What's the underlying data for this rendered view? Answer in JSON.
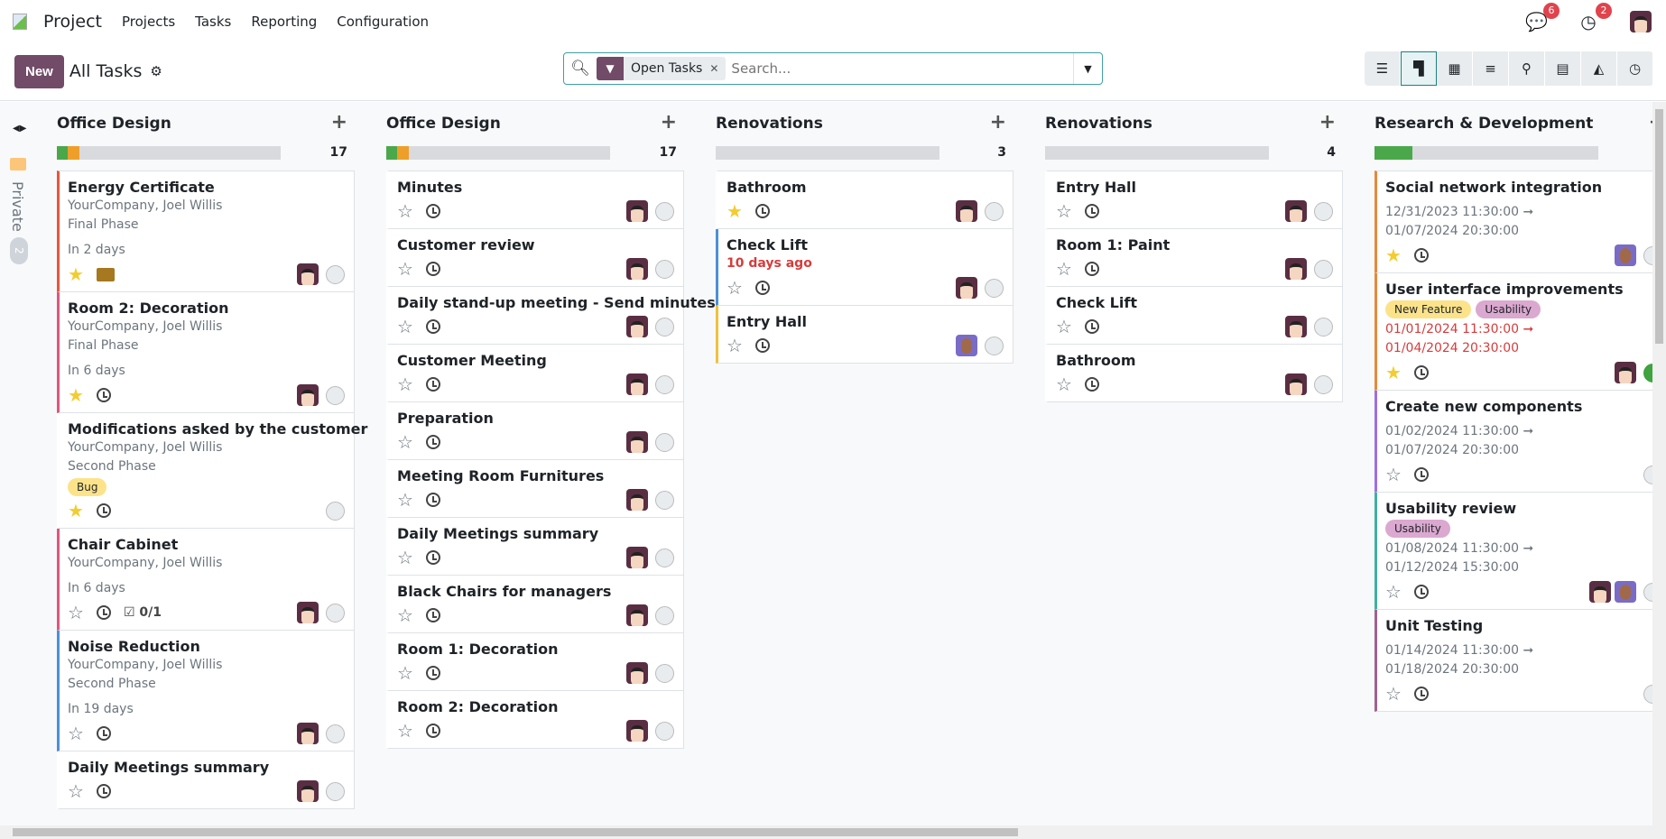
{
  "nav": {
    "app": "Project",
    "items": [
      "Projects",
      "Tasks",
      "Reporting",
      "Configuration"
    ],
    "messages_count": "6",
    "activities_count": "2"
  },
  "cp": {
    "new_label": "New",
    "title": "All Tasks",
    "facet": "Open Tasks",
    "search_placeholder": "Search...",
    "views": [
      "list-icon",
      "kanban-icon",
      "calendar-icon",
      "gantt-icon",
      "map-icon",
      "pivot-icon",
      "graph-icon",
      "activity-icon"
    ],
    "active_view": "kanban-icon"
  },
  "folded": {
    "label": "Private",
    "count": "2"
  },
  "colors": {
    "accent": "#714b67",
    "red": "#e8553f",
    "pink": "#e0557f",
    "blue": "#4a90d9",
    "yellow": "#f0c040",
    "orange": "#e6893a",
    "purple": "#9b6ee8",
    "teal": "#3fb0a0",
    "mauve": "#a0618f",
    "green": "#4aa84a",
    "progress_orange": "#ed9f2a"
  },
  "columns": [
    {
      "title": "Office Design",
      "count": "17",
      "progress": {
        "green": 5,
        "orange": 5
      },
      "cards": [
        {
          "title": "Energy Certificate",
          "sub": [
            "YourCompany, Joel Willis",
            "Final Phase"
          ],
          "deadline": "In 2 days",
          "starred": true,
          "activity": "envelope",
          "avatars": [
            "a"
          ],
          "color": "red"
        },
        {
          "title": "Room 2: Decoration",
          "sub": [
            "YourCompany, Joel Willis",
            "Final Phase"
          ],
          "deadline": "In 6 days",
          "starred": true,
          "activity": "clock",
          "avatars": [
            "a"
          ],
          "color": "pink"
        },
        {
          "title": "Modifications asked by the customer",
          "sub": [
            "YourCompany, Joel Willis",
            "Second Phase"
          ],
          "tags": [
            {
              "label": "Bug",
              "bg": "#fce38a"
            }
          ],
          "starred": true,
          "activity": "clock",
          "avatars": []
        },
        {
          "title": "Chair Cabinet",
          "sub": [
            "YourCompany, Joel Willis"
          ],
          "deadline": "In 6 days",
          "starred": false,
          "activity": "clock",
          "checklist": "0/1",
          "avatars": [
            "a"
          ],
          "color": "pink"
        },
        {
          "title": "Noise Reduction",
          "sub": [
            "YourCompany, Joel Willis",
            "Second Phase"
          ],
          "deadline": "In 19 days",
          "starred": false,
          "activity": "clock",
          "avatars": [
            "a"
          ],
          "color": "blue"
        },
        {
          "title": "Daily Meetings summary",
          "sub": [],
          "starred": false,
          "activity": "clock",
          "avatars": [
            "a"
          ]
        }
      ]
    },
    {
      "title": "Office Design",
      "count": "17",
      "progress": {
        "green": 5,
        "orange": 5
      },
      "cards": [
        {
          "title": "Minutes",
          "avatars": [
            "a"
          ]
        },
        {
          "title": "Customer review",
          "avatars": [
            "a"
          ]
        },
        {
          "title": "Daily stand-up meeting - Send minutes",
          "avatars": [
            "a"
          ]
        },
        {
          "title": "Customer Meeting",
          "avatars": [
            "a"
          ]
        },
        {
          "title": "Preparation",
          "avatars": [
            "a"
          ]
        },
        {
          "title": "Meeting Room Furnitures",
          "avatars": [
            "a"
          ]
        },
        {
          "title": "Daily Meetings summary",
          "avatars": [
            "a"
          ]
        },
        {
          "title": "Black Chairs for managers",
          "avatars": [
            "a"
          ]
        },
        {
          "title": "Room 1: Decoration",
          "avatars": [
            "a"
          ]
        },
        {
          "title": "Room 2: Decoration",
          "avatars": [
            "a"
          ]
        }
      ]
    },
    {
      "title": "Renovations",
      "count": "3",
      "progress": {
        "green": 0,
        "orange": 0
      },
      "cards": [
        {
          "title": "Bathroom",
          "starred": true,
          "avatars": [
            "a"
          ]
        },
        {
          "title": "Check Lift",
          "deadline": "10 days ago",
          "deadline_overdue": true,
          "avatars": [
            "a"
          ],
          "color": "blue"
        },
        {
          "title": "Entry Hall",
          "avatars": [
            "b"
          ],
          "color": "yellow"
        }
      ]
    },
    {
      "title": "Renovations",
      "count": "4",
      "progress": {
        "green": 0,
        "orange": 0
      },
      "cards": [
        {
          "title": "Entry Hall",
          "avatars": [
            "a"
          ]
        },
        {
          "title": "Room 1: Paint",
          "avatars": [
            "a"
          ]
        },
        {
          "title": "Check Lift",
          "avatars": [
            "a"
          ]
        },
        {
          "title": "Bathroom",
          "avatars": [
            "a"
          ]
        }
      ]
    },
    {
      "title": "Research & Development",
      "count": "",
      "progress": {
        "green": 17,
        "orange": 0
      },
      "cards": [
        {
          "title": "Social network integration",
          "dates": [
            "12/31/2023 11:30:00 ➞",
            "01/07/2024 20:30:00"
          ],
          "starred": true,
          "avatars": [
            "b"
          ],
          "color": "orange"
        },
        {
          "title": "User interface improvements",
          "tags": [
            {
              "label": "New Feature",
              "bg": "#fce38a"
            },
            {
              "label": "Usability",
              "bg": "#dba8d0"
            }
          ],
          "dates": [
            "01/01/2024 11:30:00 ➞",
            "01/04/2024 20:30:00"
          ],
          "dates_overdue": true,
          "starred": true,
          "avatars": [
            "a"
          ],
          "state": "green",
          "color": "orange"
        },
        {
          "title": "Create new components",
          "dates": [
            "01/02/2024 11:30:00 ➞",
            "01/07/2024 20:30:00"
          ],
          "avatars": [],
          "color": "purple"
        },
        {
          "title": "Usability review",
          "tags": [
            {
              "label": "Usability",
              "bg": "#dba8d0"
            }
          ],
          "dates": [
            "01/08/2024 11:30:00 ➞",
            "01/12/2024 15:30:00"
          ],
          "avatars": [
            "a",
            "b"
          ],
          "color": "teal"
        },
        {
          "title": "Unit Testing",
          "dates": [
            "01/14/2024 11:30:00 ➞",
            "01/18/2024 20:30:00"
          ],
          "avatars": [],
          "color": "mauve"
        }
      ]
    }
  ]
}
